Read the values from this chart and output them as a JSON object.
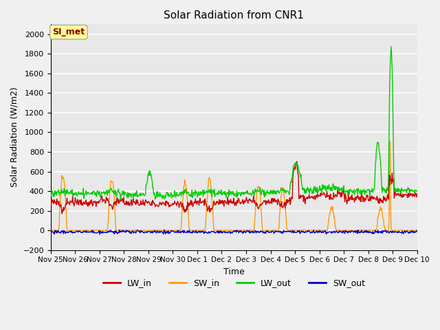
{
  "title": "Solar Radiation from CNR1",
  "xlabel": "Time",
  "ylabel": "Solar Radiation (W/m2)",
  "ylim": [
    -200,
    2100
  ],
  "yticks": [
    -200,
    0,
    200,
    400,
    600,
    800,
    1000,
    1200,
    1400,
    1600,
    1800,
    2000
  ],
  "bg_color": "#f0f0f0",
  "plot_bg_color": "#e8e8e8",
  "grid_color": "white",
  "legend_colors": [
    "#cc0000",
    "#ff9900",
    "#00cc00",
    "#0000cc"
  ],
  "watermark_text": "SI_met",
  "watermark_fg": "#8b0000",
  "watermark_bg": "#ffff99",
  "line_width": 1.0,
  "tick_labels": [
    "Nov 25",
    "Nov 26",
    "Nov 27",
    "Nov 28",
    "Nov 29",
    "Nov 30",
    "Dec 1",
    "Dec 2",
    "Dec 3",
    "Dec 4",
    "Dec 5",
    "Dec 6",
    "Dec 7",
    "Dec 8",
    "Dec 9",
    "Dec 10"
  ]
}
